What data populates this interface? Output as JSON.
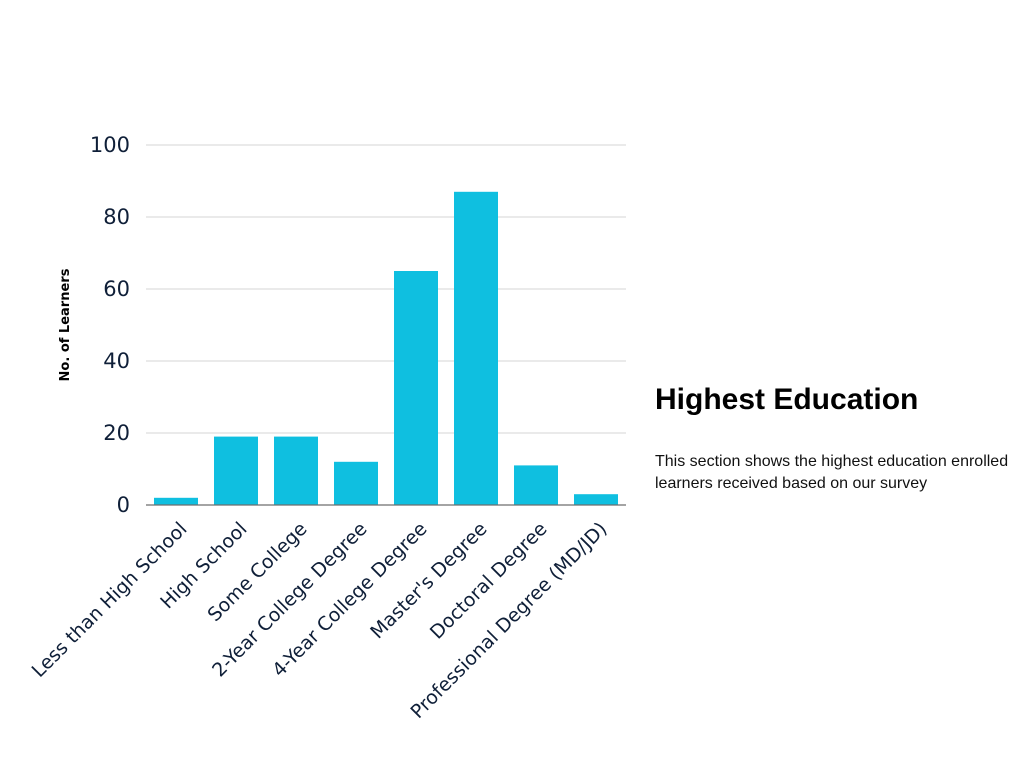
{
  "chart_data": {
    "type": "bar",
    "title": "",
    "xlabel": "",
    "ylabel": "No. of Learners",
    "categories": [
      "Less than High School",
      "High School",
      "Some College",
      "2-Year College Degree",
      "4-Year College Degree",
      "Master's Degree",
      "Doctoral Degree",
      "Professional Degree (MD/JD)"
    ],
    "values": [
      2,
      19,
      19,
      12,
      65,
      87,
      11,
      3
    ],
    "ylim": [
      0,
      100
    ],
    "yticks": [
      0,
      20,
      40,
      60,
      80,
      100
    ],
    "grid": true,
    "legend": "none",
    "bar_color": "#0fbfe0"
  },
  "section": {
    "title": "Highest Education",
    "description": "This section shows the highest education enrolled learners received based on our survey"
  }
}
